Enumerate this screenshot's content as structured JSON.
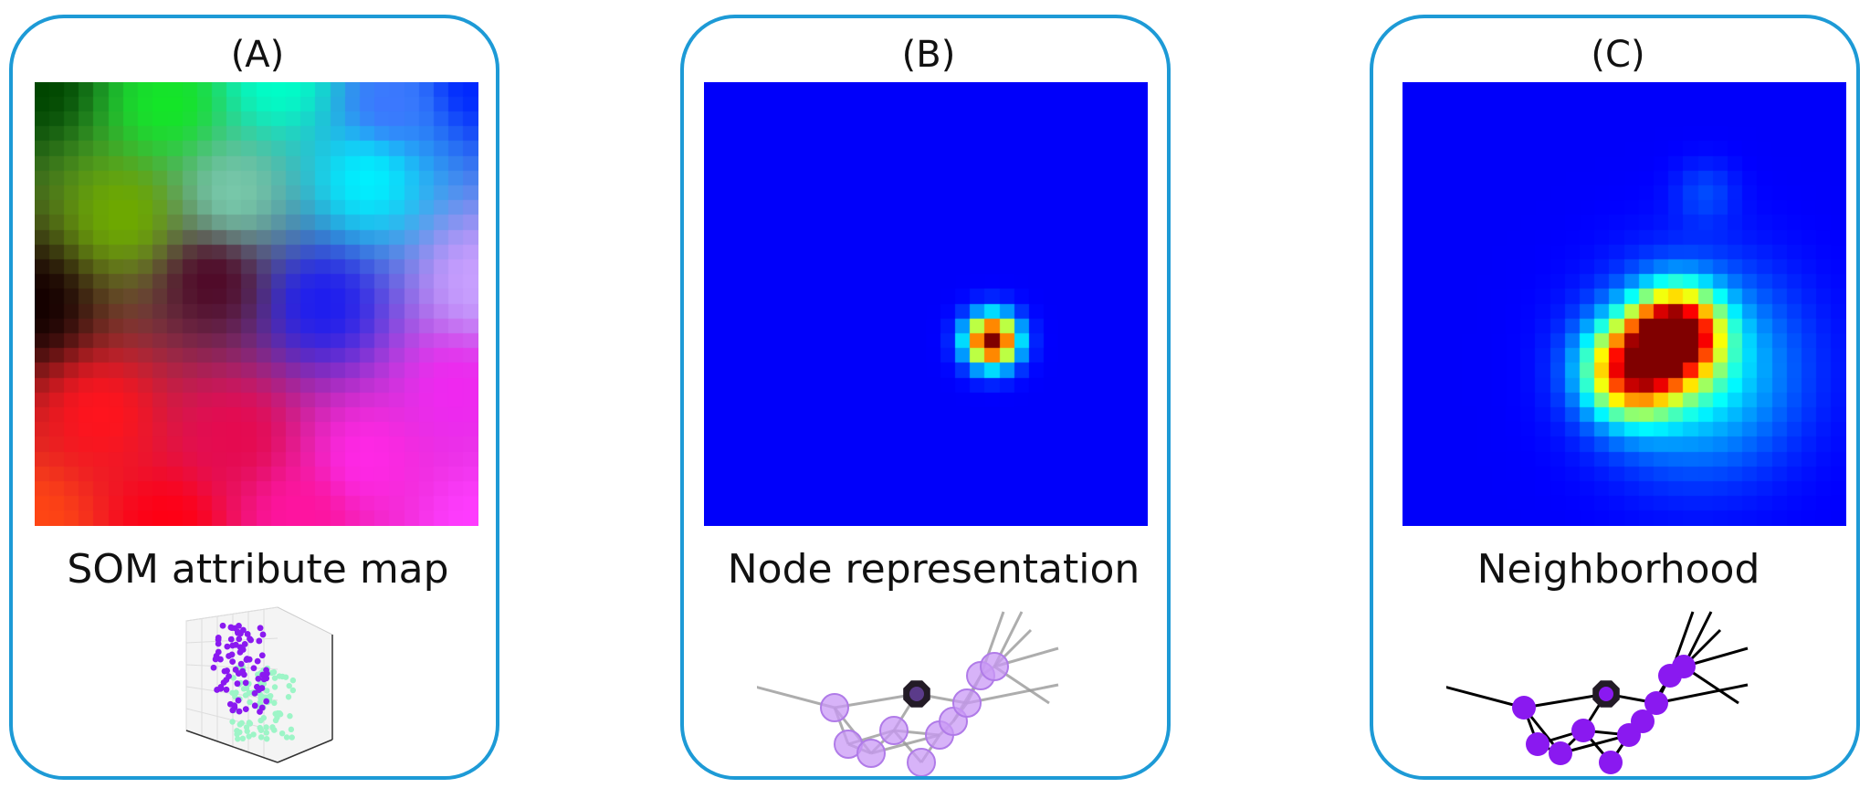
{
  "panels": [
    {
      "letter": "(A)",
      "caption": "SOM attribute map"
    },
    {
      "letter": "(B)",
      "caption": "Node representation"
    },
    {
      "letter": "(C)",
      "caption": "Neighborhood"
    }
  ],
  "colors": {
    "border": "#1d9ad6",
    "purple_node": "#8a19f0",
    "light_purple_node": "#c99af5",
    "focus_node": "#3a2f3f",
    "scatter_green": "#9df5c7",
    "heatmap_background": "#00007f"
  },
  "heatmap_grid": 30
}
